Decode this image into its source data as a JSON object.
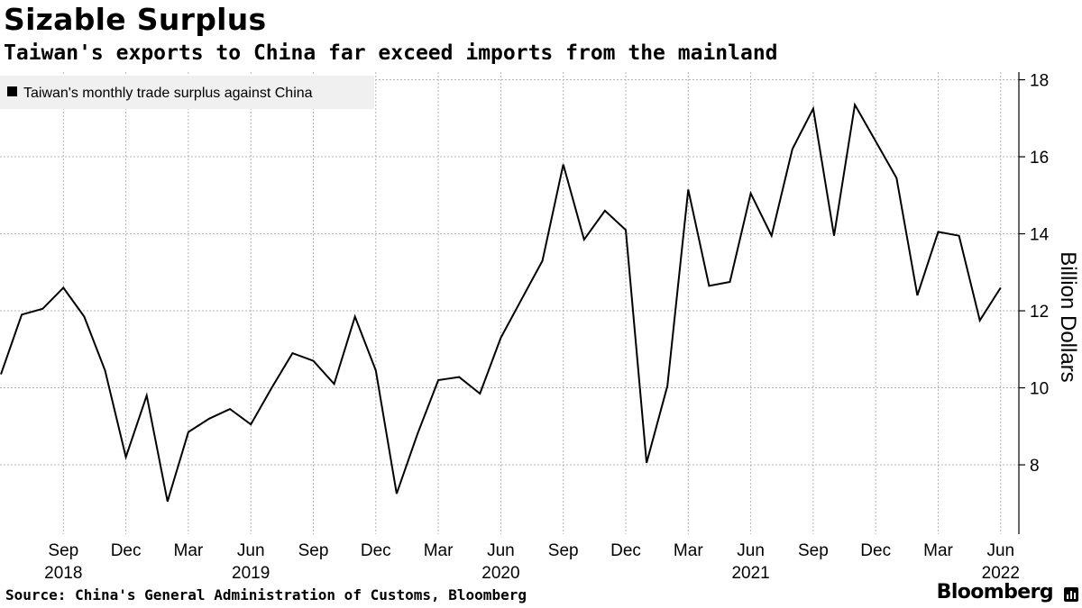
{
  "header": {
    "title": "Sizable Surplus",
    "subtitle": "Taiwan's exports to China far exceed imports from the mainland"
  },
  "footer": {
    "source": "Source: China's General Administration of Customs, Bloomberg",
    "brand": "Bloomberg"
  },
  "chart_data": {
    "type": "line",
    "title": "Sizable Surplus",
    "subtitle": "Taiwan's exports to China far exceed imports from the mainland",
    "ylabel": "Billion Dollars",
    "ylim": [
      6.2,
      18.2
    ],
    "yticks": [
      8,
      10,
      12,
      14,
      16,
      18
    ],
    "grid": true,
    "y_axis_position": "right",
    "legend_position": "top-left",
    "x_tick_labels": [
      {
        "month": "Sep",
        "year": "2018",
        "index": 3
      },
      {
        "month": "Dec",
        "year": "",
        "index": 6
      },
      {
        "month": "Mar",
        "year": "",
        "index": 9
      },
      {
        "month": "Jun",
        "year": "2019",
        "index": 12
      },
      {
        "month": "Sep",
        "year": "",
        "index": 15
      },
      {
        "month": "Dec",
        "year": "",
        "index": 18
      },
      {
        "month": "Mar",
        "year": "",
        "index": 21
      },
      {
        "month": "Jun",
        "year": "2020",
        "index": 24
      },
      {
        "month": "Sep",
        "year": "",
        "index": 27
      },
      {
        "month": "Dec",
        "year": "",
        "index": 30
      },
      {
        "month": "Mar",
        "year": "",
        "index": 33
      },
      {
        "month": "Jun",
        "year": "2021",
        "index": 36
      },
      {
        "month": "Sep",
        "year": "",
        "index": 39
      },
      {
        "month": "Dec",
        "year": "",
        "index": 42
      },
      {
        "month": "Mar",
        "year": "",
        "index": 45
      },
      {
        "month": "Jun",
        "year": "2022",
        "index": 48
      }
    ],
    "x": [
      "2018-06",
      "2018-07",
      "2018-08",
      "2018-09",
      "2018-10",
      "2018-11",
      "2018-12",
      "2019-01",
      "2019-02",
      "2019-03",
      "2019-04",
      "2019-05",
      "2019-06",
      "2019-07",
      "2019-08",
      "2019-09",
      "2019-10",
      "2019-11",
      "2019-12",
      "2020-01",
      "2020-02",
      "2020-03",
      "2020-04",
      "2020-05",
      "2020-06",
      "2020-07",
      "2020-08",
      "2020-09",
      "2020-10",
      "2020-11",
      "2020-12",
      "2021-01",
      "2021-02",
      "2021-03",
      "2021-04",
      "2021-05",
      "2021-06",
      "2021-07",
      "2021-08",
      "2021-09",
      "2021-10",
      "2021-11",
      "2021-12",
      "2022-01",
      "2022-02",
      "2022-03",
      "2022-04",
      "2022-05",
      "2022-06"
    ],
    "series": [
      {
        "name": "Taiwan's monthly trade surplus against China",
        "color": "#000000",
        "values": [
          10.35,
          11.9,
          12.05,
          12.6,
          11.85,
          10.45,
          8.2,
          9.8,
          7.05,
          8.85,
          9.2,
          9.45,
          9.05,
          10.0,
          10.9,
          10.7,
          10.1,
          11.85,
          10.45,
          7.25,
          8.8,
          10.2,
          10.28,
          9.85,
          11.3,
          12.3,
          13.3,
          15.8,
          13.85,
          14.6,
          14.1,
          8.05,
          10.05,
          15.15,
          12.65,
          12.75,
          15.05,
          13.95,
          16.2,
          17.25,
          13.95,
          17.35,
          16.4,
          15.45,
          12.4,
          14.05,
          13.95,
          11.75,
          12.6
        ]
      }
    ]
  }
}
